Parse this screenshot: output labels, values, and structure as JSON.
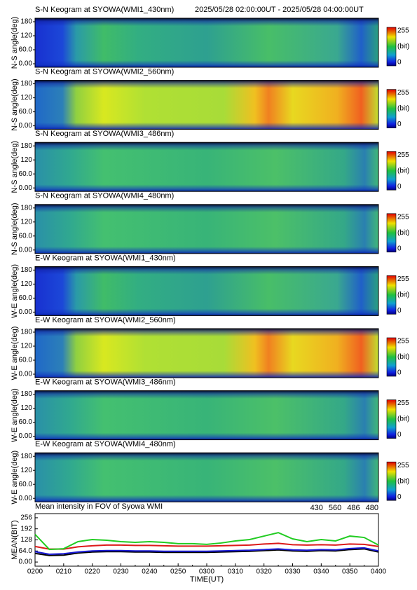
{
  "header": {
    "date_range": "2025/05/28 02:00:00UT - 2025/05/28 04:00:00UT"
  },
  "chart_data": [
    {
      "type": "heatmap",
      "title": "S-N Keogram at SYOWA(WMI1_430nm)",
      "y_label": "N-S angle(deg)",
      "ylim": [
        0,
        180
      ],
      "yticks": [
        {
          "value": 0,
          "label": "0.00"
        },
        {
          "value": 60,
          "label": "60.0"
        },
        120,
        180
      ],
      "colorbar": {
        "lim": [
          0,
          255
        ],
        "ticks": [
          0,
          255
        ],
        "label": "(bit)"
      }
    },
    {
      "type": "heatmap",
      "title": "S-N Keogram at SYOWA(WMI2_560nm)",
      "y_label": "N-S angle(deg)",
      "ylim": [
        0,
        180
      ],
      "yticks": [
        {
          "value": 0,
          "label": "0.00"
        },
        {
          "value": 60,
          "label": "60.0"
        },
        120,
        180
      ],
      "colorbar": {
        "lim": [
          0,
          255
        ],
        "ticks": [
          0,
          255
        ],
        "label": "(bit)"
      }
    },
    {
      "type": "heatmap",
      "title": "S-N Keogram at SYOWA(WMI3_486nm)",
      "y_label": "N-S angle(deg)",
      "ylim": [
        0,
        180
      ],
      "yticks": [
        {
          "value": 0,
          "label": "0.00"
        },
        {
          "value": 60,
          "label": "60.0"
        },
        120,
        180
      ],
      "colorbar": {
        "lim": [
          0,
          255
        ],
        "ticks": [
          0,
          255
        ],
        "label": "(bit)"
      }
    },
    {
      "type": "heatmap",
      "title": "S-N Keogram at SYOWA(WMI4_480nm)",
      "y_label": "N-S angle(deg)",
      "ylim": [
        0,
        180
      ],
      "yticks": [
        {
          "value": 0,
          "label": "0.00"
        },
        {
          "value": 60,
          "label": "60.0"
        },
        120,
        180
      ],
      "colorbar": {
        "lim": [
          0,
          255
        ],
        "ticks": [
          0,
          255
        ],
        "label": "(bit)"
      }
    },
    {
      "type": "heatmap",
      "title": "E-W Keogram at SYOWA(WMI1_430nm)",
      "y_label": "W-E angle(deg)",
      "ylim": [
        0,
        180
      ],
      "yticks": [
        {
          "value": 0,
          "label": "0.00"
        },
        {
          "value": 60,
          "label": "60.0"
        },
        120,
        180
      ],
      "colorbar": {
        "lim": [
          0,
          255
        ],
        "ticks": [
          0,
          255
        ],
        "label": "(bit)"
      }
    },
    {
      "type": "heatmap",
      "title": "E-W Keogram at SYOWA(WMI2_560nm)",
      "y_label": "W-E angle(deg)",
      "ylim": [
        0,
        180
      ],
      "yticks": [
        {
          "value": 0,
          "label": "0.00"
        },
        {
          "value": 60,
          "label": "60.0"
        },
        120,
        180
      ],
      "colorbar": {
        "lim": [
          0,
          255
        ],
        "ticks": [
          0,
          255
        ],
        "label": "(bit)"
      }
    },
    {
      "type": "heatmap",
      "title": "E-W Keogram at SYOWA(WMI3_486nm)",
      "y_label": "W-E angle(deg)",
      "ylim": [
        0,
        180
      ],
      "yticks": [
        {
          "value": 0,
          "label": "0.00"
        },
        {
          "value": 60,
          "label": "60.0"
        },
        120,
        180
      ],
      "colorbar": {
        "lim": [
          0,
          255
        ],
        "ticks": [
          0,
          255
        ],
        "label": "(bit)"
      }
    },
    {
      "type": "heatmap",
      "title": "E-W Keogram at SYOWA(WMI4_480nm)",
      "y_label": "W-E angle(deg)",
      "ylim": [
        0,
        180
      ],
      "yticks": [
        {
          "value": 0,
          "label": "0.00"
        },
        {
          "value": 60,
          "label": "60.0"
        },
        120,
        180
      ],
      "colorbar": {
        "lim": [
          0,
          255
        ],
        "ticks": [
          0,
          255
        ],
        "label": "(bit)"
      }
    },
    {
      "type": "line",
      "title": "Mean intensity in FOV of Syowa WMI",
      "x_label": "TIME(UT)",
      "y_label": "MEAN(BIT)",
      "x": [
        0,
        5,
        10,
        15,
        20,
        25,
        30,
        35,
        40,
        45,
        50,
        55,
        60,
        65,
        70,
        75,
        80,
        85,
        90,
        95,
        100,
        105,
        110,
        115,
        120
      ],
      "xlim": [
        0,
        120
      ],
      "xticks": [
        {
          "value": 0,
          "label": "0200"
        },
        {
          "value": 10,
          "label": "0210"
        },
        {
          "value": 20,
          "label": "0220"
        },
        {
          "value": 30,
          "label": "0230"
        },
        {
          "value": 40,
          "label": "0240"
        },
        {
          "value": 50,
          "label": "0250"
        },
        {
          "value": 60,
          "label": "0300"
        },
        {
          "value": 70,
          "label": "0310"
        },
        {
          "value": 80,
          "label": "0320"
        },
        {
          "value": 90,
          "label": "0330"
        },
        {
          "value": 100,
          "label": "0340"
        },
        {
          "value": 110,
          "label": "0350"
        },
        {
          "value": 120,
          "label": "0400"
        }
      ],
      "ylim": [
        -24,
        280
      ],
      "yticks": [
        {
          "value": 0,
          "label": "0.00"
        },
        {
          "value": 64,
          "label": "64.0"
        },
        128,
        192,
        256
      ],
      "series": [
        {
          "name": "430",
          "color": "#1a1ad8",
          "values": [
            60,
            45,
            48,
            58,
            64,
            66,
            66,
            64,
            64,
            62,
            62,
            62,
            62,
            64,
            66,
            68,
            72,
            76,
            70,
            68,
            72,
            70,
            78,
            82,
            64
          ]
        },
        {
          "name": "560",
          "color": "#22cc22",
          "values": [
            160,
            73,
            77,
            118,
            130,
            126,
            118,
            114,
            118,
            114,
            106,
            106,
            102,
            110,
            122,
            130,
            150,
            170,
            134,
            118,
            130,
            122,
            150,
            142,
            98
          ]
        },
        {
          "name": "486",
          "color": "#dd1a1a",
          "values": [
            90,
            75,
            75,
            88,
            94,
            98,
            98,
            96,
            96,
            94,
            92,
            92,
            92,
            94,
            96,
            98,
            104,
            108,
            100,
            98,
            100,
            98,
            104,
            102,
            90
          ]
        },
        {
          "name": "480",
          "color": "#000000",
          "values": [
            50,
            38,
            40,
            52,
            58,
            60,
            60,
            58,
            58,
            56,
            56,
            56,
            56,
            58,
            60,
            62,
            66,
            70,
            64,
            62,
            66,
            64,
            72,
            76,
            58
          ]
        }
      ]
    }
  ]
}
